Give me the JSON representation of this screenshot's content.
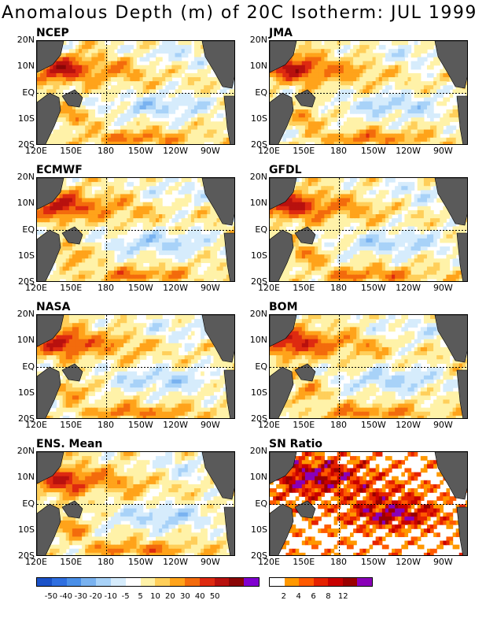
{
  "title": "Anomalous Depth (m) of 20C Isotherm: JUL 1999",
  "lat_labels": [
    "20N",
    "10N",
    "EQ",
    "10S",
    "20S"
  ],
  "lon_labels": [
    "120E",
    "150E",
    "180",
    "150W",
    "120W",
    "90W"
  ],
  "panels": [
    {
      "name": "NCEP",
      "type": "anomaly"
    },
    {
      "name": "JMA",
      "type": "anomaly"
    },
    {
      "name": "ECMWF",
      "type": "anomaly"
    },
    {
      "name": "GFDL",
      "type": "anomaly"
    },
    {
      "name": "NASA",
      "type": "anomaly"
    },
    {
      "name": "BOM",
      "type": "anomaly"
    },
    {
      "name": "ENS. Mean",
      "type": "anomaly"
    },
    {
      "name": "SN Ratio",
      "type": "ratio"
    }
  ],
  "anomaly_scale": {
    "colors": [
      "#1a52c8",
      "#2f6fe0",
      "#4a8fe8",
      "#79b2f0",
      "#a8d2f8",
      "#d6ecfc",
      "#ffffff",
      "#fff2a8",
      "#ffcf5a",
      "#ffa31a",
      "#f36b0c",
      "#de2a10",
      "#b8110e",
      "#8a0606",
      "#8000d0"
    ],
    "labels": [
      "-50",
      "-40",
      "-30",
      "-20",
      "-10",
      "-5",
      "5",
      "10",
      "20",
      "30",
      "40",
      "50"
    ]
  },
  "ratio_scale": {
    "colors": [
      "#ffffff",
      "#ff9800",
      "#ff5a00",
      "#e52200",
      "#c80000",
      "#9a0000",
      "#8a00b8"
    ],
    "labels": [
      "2",
      "4",
      "6",
      "8",
      "12"
    ]
  },
  "land_color": "#5a5a5a"
}
